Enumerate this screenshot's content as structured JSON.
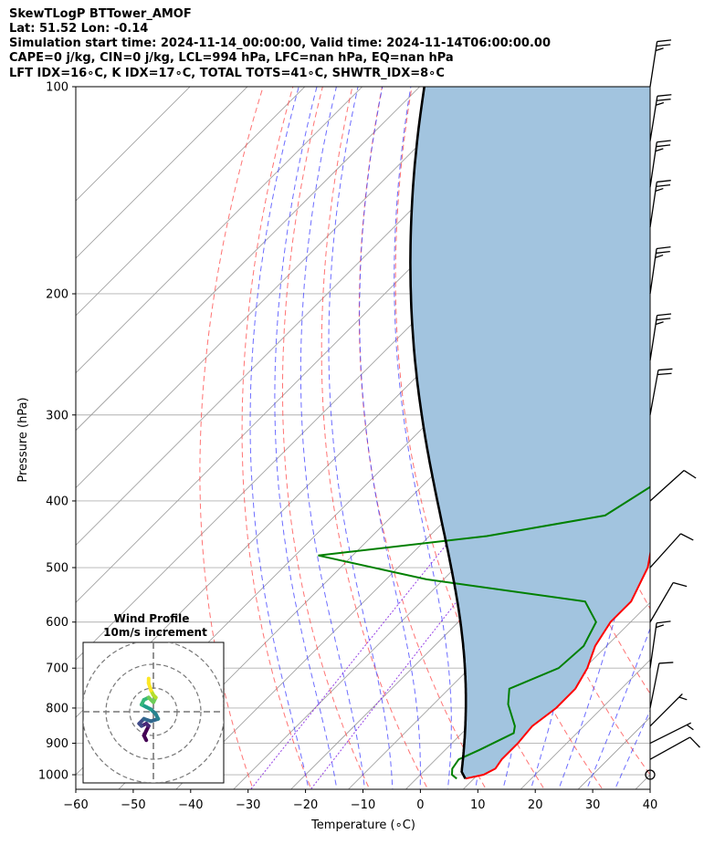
{
  "header": {
    "line1": "SkewTLogP BTTower_AMOF",
    "line2": "Lat: 51.52   Lon: -0.14",
    "line3": "Simulation start time: 2024-11-14_00:00:00, Valid time: 2024-11-14T06:00:00.00",
    "line4": "CAPE=0 j/kg, CIN=0 j/kg, LCL=994 hPa, LFC=nan hPa, EQ=nan hPa",
    "line5": "LFT IDX=16∘C, K IDX=17∘C, TOTAL TOTS=41∘C, SHWTR_IDX=8∘C"
  },
  "chart_data": {
    "type": "skewt-logp",
    "xlabel": "Temperature (∘C)",
    "ylabel": "Pressure (hPa)",
    "xlim": [
      -60,
      40
    ],
    "ylim": [
      1050,
      100
    ],
    "x_ticks": [
      "−60",
      "−50",
      "−40",
      "−30",
      "−20",
      "−10",
      "0",
      "10",
      "20",
      "30",
      "40"
    ],
    "x_tick_values": [
      -60,
      -50,
      -40,
      -30,
      -20,
      -10,
      0,
      10,
      20,
      30,
      40
    ],
    "y_ticks": [
      "100",
      "200",
      "300",
      "400",
      "500",
      "600",
      "700",
      "800",
      "900",
      "1000"
    ],
    "y_tick_values": [
      100,
      200,
      300,
      400,
      500,
      600,
      700,
      800,
      900,
      1000
    ],
    "grid": true,
    "colors": {
      "temperature": "#ff0000",
      "dewpoint": "#008000",
      "parcel": "#000000",
      "shade": "#a2c4df",
      "dry_adiabat": "#ff4444",
      "moist_adiabat": "#3b3bff",
      "mixing_ratio": "#8a2be2",
      "isotherm": "#999999"
    },
    "temperature": [
      [
        1013,
        8.5
      ],
      [
        1000,
        11
      ],
      [
        980,
        12
      ],
      [
        950,
        11.5
      ],
      [
        900,
        11.5
      ],
      [
        850,
        11
      ],
      [
        800,
        12
      ],
      [
        750,
        12
      ],
      [
        700,
        10.5
      ],
      [
        650,
        8
      ],
      [
        600,
        6.5
      ],
      [
        560,
        6.5
      ],
      [
        500,
        3.5
      ],
      [
        450,
        -1
      ],
      [
        400,
        -4.5
      ],
      [
        350,
        -9
      ],
      [
        305,
        -12
      ],
      [
        290,
        -12
      ],
      [
        250,
        -12.5
      ],
      [
        200,
        -12
      ],
      [
        150,
        -15
      ],
      [
        125,
        -17
      ],
      [
        110,
        -18
      ],
      [
        100,
        -20
      ]
    ],
    "dewpoint": [
      [
        1013,
        7
      ],
      [
        1000,
        5.5
      ],
      [
        980,
        4.5
      ],
      [
        950,
        4
      ],
      [
        920,
        6
      ],
      [
        870,
        9
      ],
      [
        850,
        8
      ],
      [
        790,
        3
      ],
      [
        750,
        0.5
      ],
      [
        700,
        5.5
      ],
      [
        650,
        6
      ],
      [
        600,
        4
      ],
      [
        560,
        -1.5
      ],
      [
        520,
        -33
      ],
      [
        480,
        -56
      ],
      [
        450,
        -30
      ],
      [
        420,
        -13
      ],
      [
        380,
        -10
      ],
      [
        340,
        -10
      ],
      [
        320,
        -14
      ],
      [
        290,
        -20
      ],
      [
        260,
        -19
      ],
      [
        220,
        -18
      ],
      [
        180,
        -18.5
      ],
      [
        155,
        -19
      ],
      [
        140,
        -21
      ],
      [
        130,
        -21
      ],
      [
        110,
        -22
      ],
      [
        100,
        -24
      ]
    ],
    "parcel_start": [
      1013,
      8.5
    ],
    "parcel_dewpoint": 7,
    "wind_barbs": [
      {
        "p": 1000,
        "calm": true
      },
      {
        "p": 950,
        "u": 9,
        "v": 5
      },
      {
        "p": 900,
        "u": 8,
        "v": 4
      },
      {
        "p": 850,
        "u": 6,
        "v": 6
      },
      {
        "p": 800,
        "u": 2,
        "v": 10
      },
      {
        "p": 700,
        "u": 2,
        "v": 14
      },
      {
        "p": 600,
        "u": 7,
        "v": 12
      },
      {
        "p": 500,
        "u": 9,
        "v": 10
      },
      {
        "p": 400,
        "u": 10,
        "v": 9
      },
      {
        "p": 300,
        "u": 4,
        "v": 22
      },
      {
        "p": 250,
        "u": 4,
        "v": 26
      },
      {
        "p": 200,
        "u": 4,
        "v": 28
      },
      {
        "p": 160,
        "u": 4,
        "v": 27
      },
      {
        "p": 140,
        "u": 4,
        "v": 27
      },
      {
        "p": 120,
        "u": 4,
        "v": 25
      },
      {
        "p": 100,
        "u": 4,
        "v": 26
      }
    ],
    "hodograph": {
      "title": "Wind Profile",
      "subtitle": "10m/s increment",
      "rings": [
        10,
        20,
        30
      ],
      "points": [
        [
          -3,
          -12
        ],
        [
          -4,
          -10
        ],
        [
          -3,
          -8
        ],
        [
          -2,
          -6
        ],
        [
          -3,
          -5
        ],
        [
          -5,
          -6
        ],
        [
          -6,
          -5
        ],
        [
          -4,
          -3
        ],
        [
          -1,
          -4
        ],
        [
          2,
          -3
        ],
        [
          1,
          -1
        ],
        [
          -1,
          1
        ],
        [
          -3,
          2
        ],
        [
          -5,
          3
        ],
        [
          -4,
          5
        ],
        [
          -2,
          6
        ],
        [
          0,
          4
        ],
        [
          1,
          6
        ],
        [
          0,
          7
        ],
        [
          -1,
          9
        ],
        [
          -2,
          12
        ],
        [
          -2,
          14
        ]
      ]
    }
  }
}
